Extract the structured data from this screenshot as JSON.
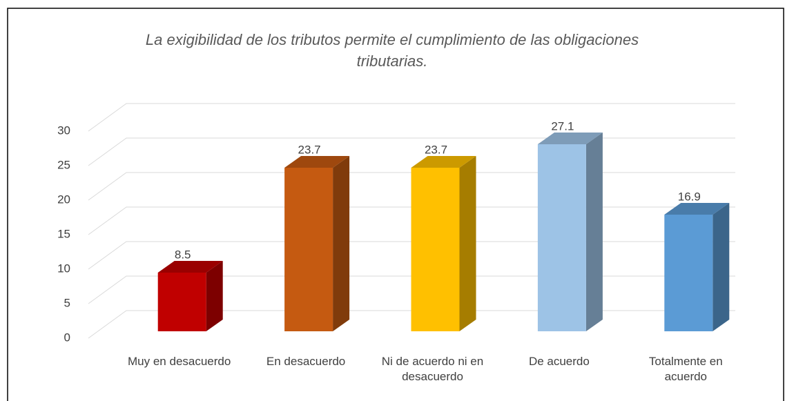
{
  "chart_data": {
    "type": "bar3d",
    "title": "La exigibilidad de los tributos permite el cumplimiento de las obligaciones tributarias.",
    "categories": [
      "Muy en desacuerdo",
      "En desacuerdo",
      "Ni de acuerdo ni en desacuerdo",
      "De acuerdo",
      "Totalmente en acuerdo"
    ],
    "values": [
      8.5,
      23.7,
      23.7,
      27.1,
      16.9
    ],
    "colors": [
      "#c00000",
      "#c55a11",
      "#ffc000",
      "#9dc3e6",
      "#5b9bd5"
    ],
    "ylim": [
      0,
      30
    ],
    "yticks": [
      0,
      5,
      10,
      15,
      20,
      25,
      30
    ],
    "grid": true
  }
}
